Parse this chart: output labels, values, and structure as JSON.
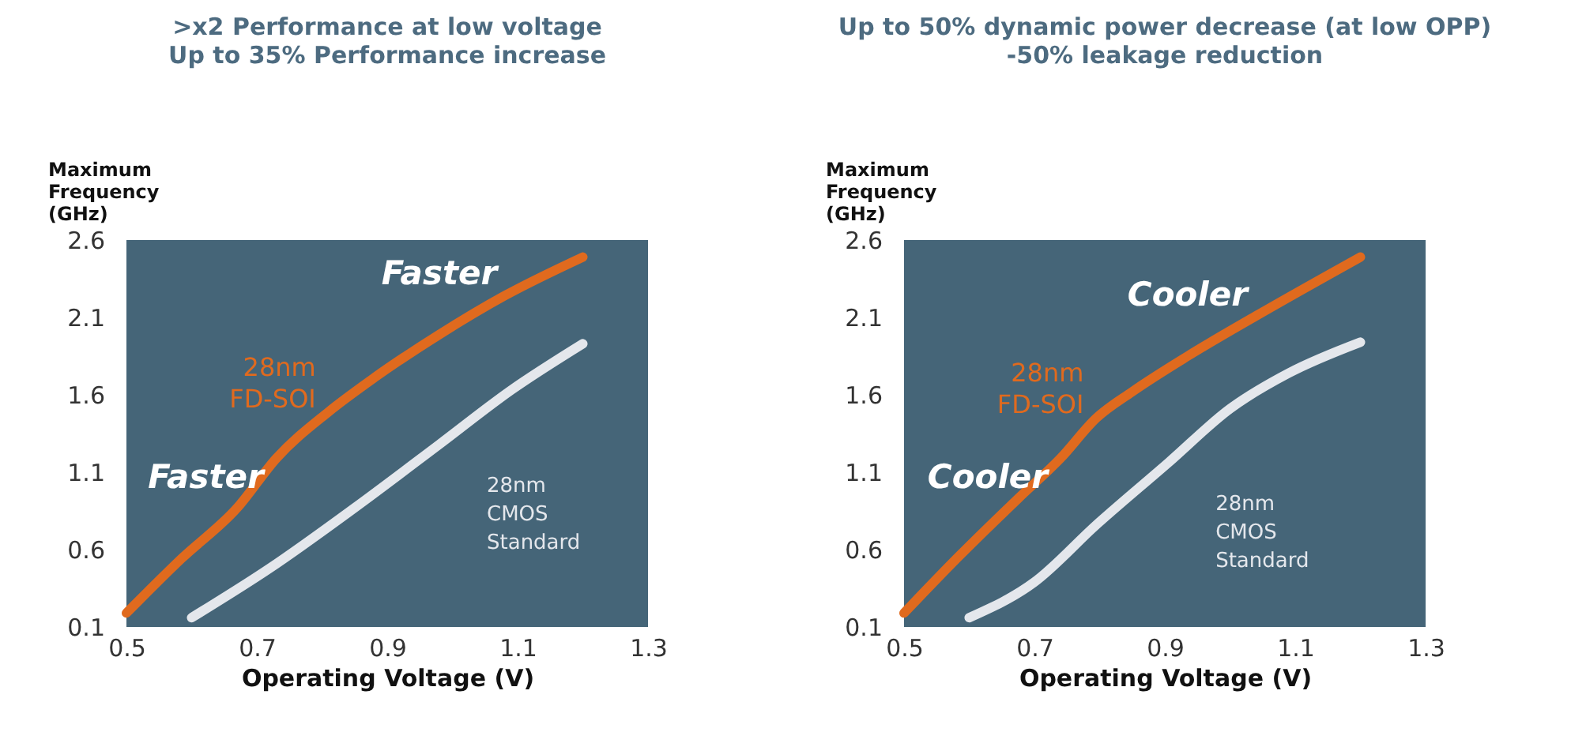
{
  "chart_data": [
    {
      "type": "line",
      "xlabel": "Operating Voltage (V)",
      "ylabel": "Maximum Frequency (GHz)",
      "xlim": [
        0.5,
        1.3
      ],
      "xticks": [
        0.5,
        0.7,
        0.9,
        1.1,
        1.3
      ],
      "ylim": [
        0.1,
        2.6
      ],
      "yticks": [
        0.1,
        0.6,
        1.1,
        1.6,
        2.1,
        2.6
      ],
      "grid": false,
      "legend": false,
      "marker": "none",
      "line_style": "solid",
      "title": ">x2 Performance at low voltage",
      "subtitle": "Up to 35% Performance increase",
      "annotations": [
        "Faster",
        "Faster"
      ],
      "series": [
        {
          "name": "28nm FD-SOI",
          "color": "#e06a1e",
          "x": [
            0.5,
            0.584,
            0.67,
            0.73,
            0.81,
            0.88,
            0.98,
            1.08,
            1.2
          ],
          "values": [
            0.19,
            0.54,
            0.87,
            1.19,
            1.49,
            1.71,
            1.99,
            2.24,
            2.49
          ]
        },
        {
          "name": "28nm CMOS Standard",
          "color": "#e4e7ec",
          "x": [
            0.6,
            0.72,
            0.85,
            0.98,
            1.09,
            1.2
          ],
          "values": [
            0.16,
            0.48,
            0.87,
            1.28,
            1.63,
            1.93
          ]
        }
      ]
    },
    {
      "type": "line",
      "xlabel": "Operating Voltage (V)",
      "ylabel": "Maximum Frequency (GHz)",
      "xlim": [
        0.5,
        1.3
      ],
      "xticks": [
        0.5,
        0.7,
        0.9,
        1.1,
        1.3
      ],
      "ylim": [
        0.1,
        2.6
      ],
      "yticks": [
        0.1,
        0.6,
        1.1,
        1.6,
        2.1,
        2.6
      ],
      "grid": false,
      "legend": false,
      "marker": "none",
      "line_style": "solid",
      "title": "Up to 50% dynamic power decrease (at low OPP)",
      "subtitle": "-50% leakage reduction",
      "annotations": [
        "Cooler",
        "Cooler"
      ],
      "series": [
        {
          "name": "28nm FD-SOI",
          "color": "#e06a1e",
          "x": [
            0.5,
            0.585,
            0.675,
            0.74,
            0.795,
            0.85,
            0.935,
            1.04,
            1.2
          ],
          "values": [
            0.19,
            0.56,
            0.93,
            1.19,
            1.45,
            1.62,
            1.85,
            2.11,
            2.49
          ]
        },
        {
          "name": "28nm CMOS Standard",
          "color": "#e4e7ec",
          "x": [
            0.6,
            0.7,
            0.795,
            0.905,
            1.0,
            1.09,
            1.2
          ],
          "values": [
            0.16,
            0.39,
            0.76,
            1.16,
            1.51,
            1.74,
            1.94
          ]
        }
      ]
    }
  ]
}
